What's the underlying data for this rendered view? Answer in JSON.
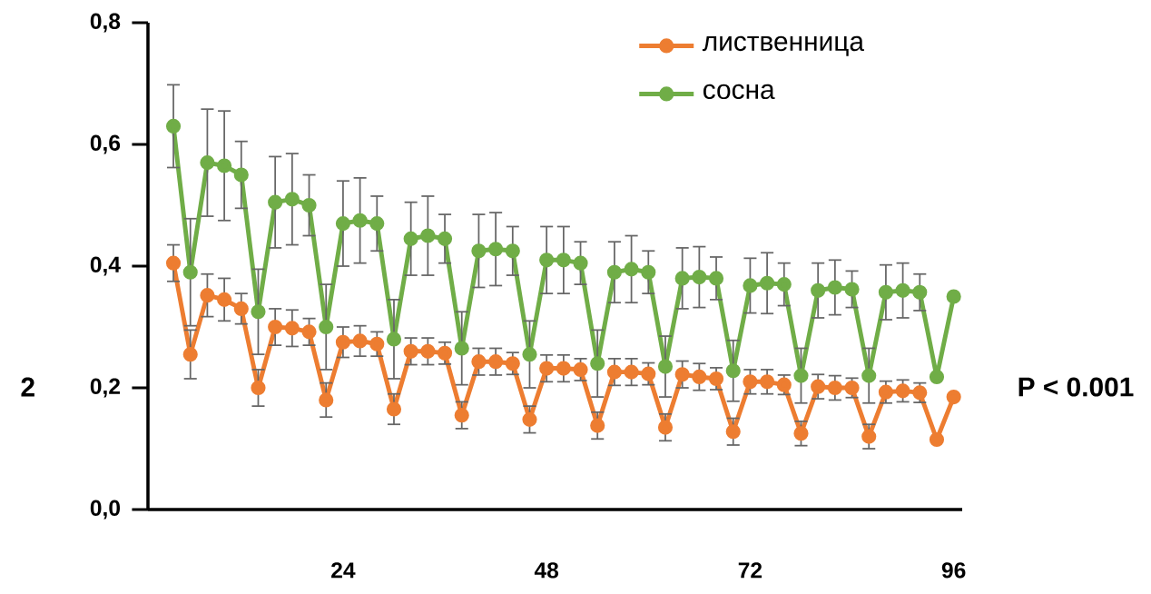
{
  "chart_data": {
    "type": "line",
    "x": [
      4,
      6,
      8,
      10,
      12,
      14,
      16,
      18,
      20,
      22,
      24,
      26,
      28,
      30,
      32,
      34,
      36,
      38,
      40,
      42,
      44,
      46,
      48,
      50,
      52,
      54,
      56,
      58,
      60,
      62,
      64,
      66,
      68,
      70,
      72,
      74,
      76,
      78,
      80,
      82,
      84,
      86,
      88,
      90,
      92,
      94,
      96
    ],
    "xlim": [
      1,
      97
    ],
    "xticks": [
      24,
      48,
      72,
      96
    ],
    "ylim": [
      0,
      0.8
    ],
    "yticks": [
      {
        "value": 0,
        "label": "0,0"
      },
      {
        "value": 0.2,
        "label": "0,2"
      },
      {
        "value": 0.4,
        "label": "0,4"
      },
      {
        "value": 0.6,
        "label": "0,6"
      },
      {
        "value": 0.8,
        "label": "0,8"
      }
    ],
    "series": [
      {
        "name": "лиственница",
        "color": "#ed7d31",
        "values": [
          0.405,
          0.255,
          0.352,
          0.345,
          0.33,
          0.2,
          0.3,
          0.298,
          0.292,
          0.18,
          0.275,
          0.277,
          0.272,
          0.165,
          0.26,
          0.26,
          0.257,
          0.155,
          0.243,
          0.243,
          0.24,
          0.148,
          0.232,
          0.232,
          0.23,
          0.138,
          0.226,
          0.226,
          0.223,
          0.135,
          0.222,
          0.218,
          0.215,
          0.128,
          0.21,
          0.21,
          0.205,
          0.125,
          0.202,
          0.2,
          0.2,
          0.12,
          0.193,
          0.195,
          0.192,
          0.115,
          0.185
        ],
        "errors": [
          0.03,
          0.04,
          0.035,
          0.035,
          0.025,
          0.03,
          0.03,
          0.03,
          0.022,
          0.028,
          0.025,
          0.025,
          0.02,
          0.025,
          0.022,
          0.022,
          0.018,
          0.022,
          0.022,
          0.022,
          0.018,
          0.022,
          0.022,
          0.022,
          0.018,
          0.022,
          0.022,
          0.022,
          0.018,
          0.022,
          0.022,
          0.022,
          0.018,
          0.022,
          0.02,
          0.02,
          0.016,
          0.02,
          0.02,
          0.02,
          0.016,
          0.02,
          0.018,
          0.018,
          0.016,
          null,
          null
        ]
      },
      {
        "name": "сосна",
        "color": "#70ad47",
        "values": [
          0.63,
          0.39,
          0.57,
          0.565,
          0.55,
          0.325,
          0.505,
          0.51,
          0.5,
          0.3,
          0.47,
          0.475,
          0.47,
          0.28,
          0.445,
          0.45,
          0.445,
          0.265,
          0.425,
          0.428,
          0.425,
          0.255,
          0.41,
          0.41,
          0.405,
          0.24,
          0.39,
          0.395,
          0.39,
          0.235,
          0.38,
          0.382,
          0.38,
          0.228,
          0.368,
          0.372,
          0.37,
          0.22,
          0.36,
          0.365,
          0.362,
          0.22,
          0.357,
          0.36,
          0.357,
          0.218,
          0.35
        ],
        "errors": [
          0.068,
          0.088,
          0.088,
          0.09,
          0.055,
          0.07,
          0.075,
          0.075,
          0.05,
          0.07,
          0.07,
          0.07,
          0.045,
          0.065,
          0.06,
          0.065,
          0.04,
          0.06,
          0.06,
          0.06,
          0.04,
          0.055,
          0.055,
          0.055,
          0.035,
          0.055,
          0.05,
          0.055,
          0.035,
          0.05,
          0.05,
          0.05,
          0.035,
          0.05,
          0.045,
          0.05,
          0.035,
          0.045,
          0.045,
          0.045,
          0.03,
          0.045,
          0.045,
          0.045,
          0.03,
          null,
          null
        ]
      }
    ],
    "marker": "circle",
    "legend": "top right",
    "grid": false,
    "annotations": [
      "2",
      "P < 0.001"
    ]
  }
}
